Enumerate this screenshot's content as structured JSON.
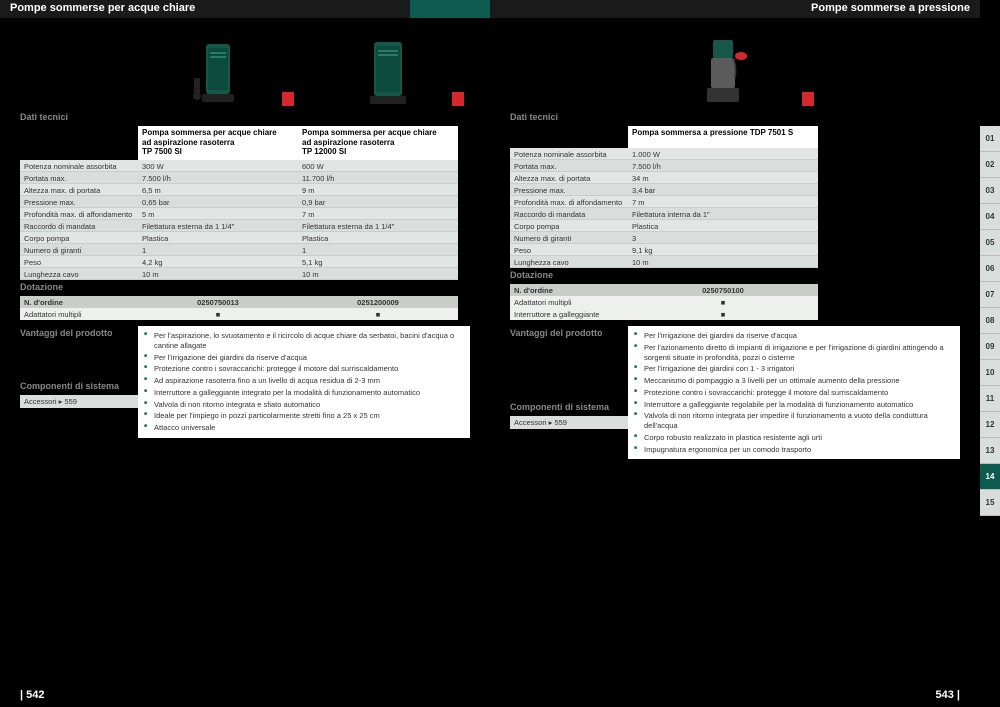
{
  "left": {
    "header_title": "Pompe sommerse per acque chiare",
    "section_tech": "Dati tecnici",
    "section_dot": "Dotazione",
    "section_adv": "Vantaggi del prodotto",
    "section_comp": "Componenti di sistema",
    "products": [
      {
        "name": "Pompa sommersa per acque chiare\nad aspirazione rasoterra\nTP 7500 SI",
        "pump_color": "#16574a"
      },
      {
        "name": "Pompa sommersa per acque chiare\nad aspirazione rasoterra\nTP 12000 SI",
        "pump_color": "#16574a"
      }
    ],
    "spec_labels": [
      "Potenza nominale assorbita",
      "Portata max.",
      "Altezza max. di portata",
      "Pressione max.",
      "Profondità max. di affondamento",
      "Raccordo di mandata",
      "Corpo pompa",
      "Numero di giranti",
      "Peso",
      "Lunghezza cavo"
    ],
    "spec_values": [
      [
        "300 W",
        "600 W"
      ],
      [
        "7.500 l/h",
        "11.700 l/h"
      ],
      [
        "6,5 m",
        "9 m"
      ],
      [
        "0,65 bar",
        "0,9 bar"
      ],
      [
        "5 m",
        "7 m"
      ],
      [
        "Filettatura esterna da 1 1/4\"",
        "Filettatura esterna da 1 1/4\""
      ],
      [
        "Plastica",
        "Plastica"
      ],
      [
        "1",
        "1"
      ],
      [
        "4,2 kg",
        "5,1 kg"
      ],
      [
        "10 m",
        "10 m"
      ]
    ],
    "order_label": "N. d'ordine",
    "order_values": [
      "0250750013",
      "0251200009"
    ],
    "adapter_label": "Adattatori multipli",
    "adapter_values": [
      "■",
      "■"
    ],
    "advantages": [
      "Per l'aspirazione, lo svuotamento e il ricircolo di acque chiare da serbatoi, bacini d'acqua o cantine allagate",
      "Per l'irrigazione dei giardini da riserve d'acqua",
      "Protezione contro i sovraccarichi: protegge il motore dal surriscaldamento",
      "Ad aspirazione rasoterra fino a un livello di acqua residua di 2-3 mm",
      "Interruttore a galleggiante integrato per la modalità di funzionamento automatico",
      "Valvola di non ritorno integrata e sfiato automatico",
      "Ideale per l'impiego in pozzi particolarmente stretti fino a 25 x 25 cm",
      "Attacco universale"
    ],
    "accessories": "Accessori  ▸ 559",
    "page_num": "| 542"
  },
  "right": {
    "header_title": "Pompe sommerse a pressione",
    "section_tech": "Dati tecnici",
    "section_dot": "Dotazione",
    "section_adv": "Vantaggi del prodotto",
    "section_comp": "Componenti di sistema",
    "products": [
      {
        "name": "Pompa sommersa a pressione\nTDP 7501 S",
        "pump_color": "#5b5b5b"
      }
    ],
    "spec_labels": [
      "Potenza nominale assorbita",
      "Portata max.",
      "Altezza max. di portata",
      "Pressione max.",
      "Profondità max. di affondamento",
      "Raccordo di mandata",
      "Corpo pompa",
      "Numero di giranti",
      "Peso",
      "Lunghezza cavo"
    ],
    "spec_values": [
      [
        "1.000 W"
      ],
      [
        "7.500 l/h"
      ],
      [
        "34 m"
      ],
      [
        "3,4 bar"
      ],
      [
        "7 m"
      ],
      [
        "Filettatura interna da 1\""
      ],
      [
        "Plastica"
      ],
      [
        "3"
      ],
      [
        "9,1 kg"
      ],
      [
        "10 m"
      ]
    ],
    "order_label": "N. d'ordine",
    "order_values": [
      "0250750100"
    ],
    "adapter_label": "Adattatori multipli",
    "adapter_values": [
      "■"
    ],
    "float_label": "Interruttore a galleggiante",
    "float_values": [
      "■"
    ],
    "advantages": [
      "Per l'irrigazione dei giardini da riserve d'acqua",
      "Per l'azionamento diretto di impianti di irrigazione e per l'irrigazione di giardini attingendo a sorgenti situate in profondità, pozzi o cisterne",
      "Per l'irrigazione dei giardini con 1 - 3 irrigatori",
      "Meccanismo di pompaggio a 3 livelli per un ottimale aumento della pressione",
      "Protezione contro i sovraccarichi: protegge il motore dal surriscaldamento",
      "Interruttore a galleggiante regolabile per la modalità di funzionamento automatico",
      "Valvola di non ritorno integrata per impedire il funzionamento a vuoto della conduttura dell'acqua",
      "Corpo robusto realizzato in plastica resistente agli urti",
      "Impugnatura ergonomica per un comodo trasporto"
    ],
    "accessories": "Accessori  ▸ 559",
    "page_num": "543 |"
  },
  "tabs": [
    "01",
    "02",
    "03",
    "04",
    "05",
    "06",
    "07",
    "08",
    "09",
    "10",
    "11",
    "12",
    "13",
    "14",
    "15"
  ],
  "active_tab": "14"
}
